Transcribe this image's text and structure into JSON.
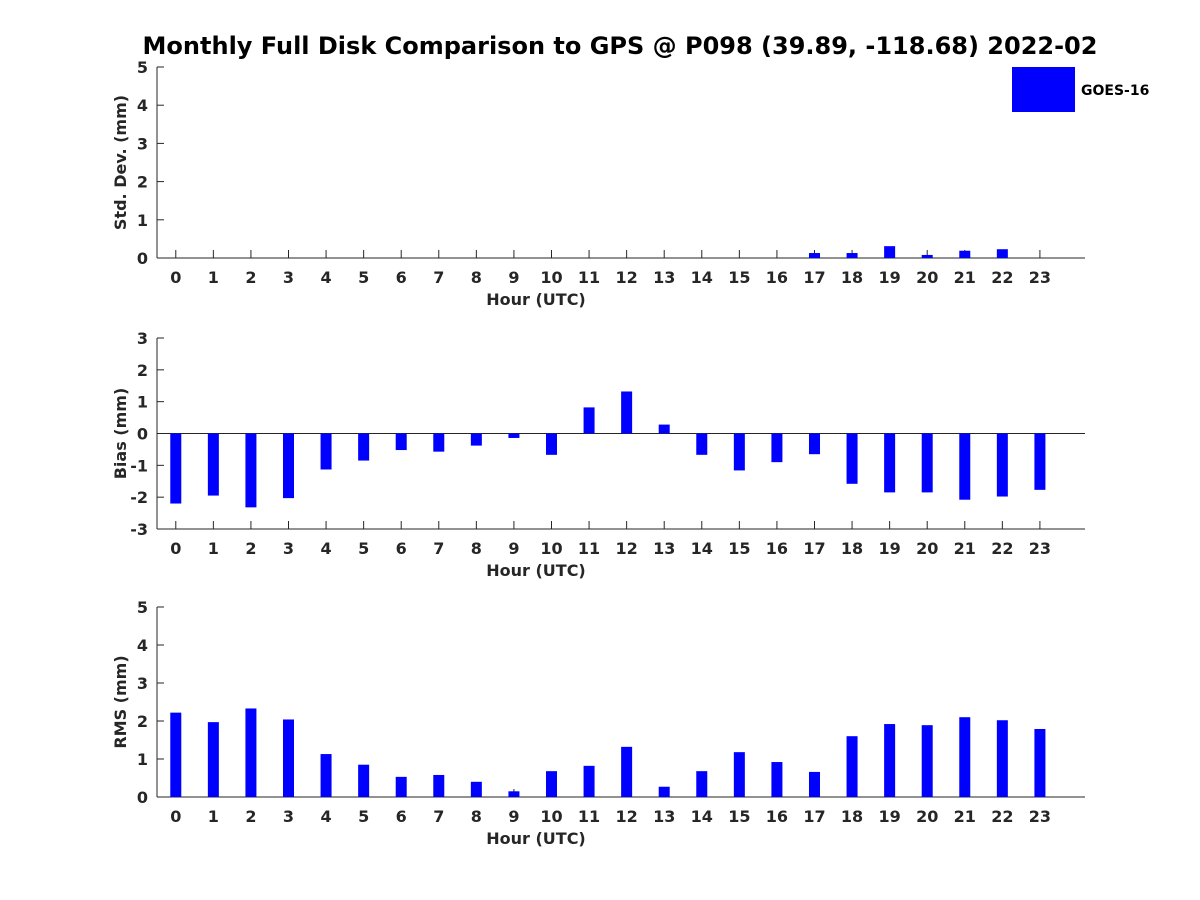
{
  "figure": {
    "title": "Monthly Full Disk Comparison to GPS @ P098 (39.89, -118.68) 2022-02",
    "bar_color": "#0000ff",
    "axis_color": "#262626"
  },
  "legend": {
    "label": "GOES-16",
    "color": "#0000ff",
    "placement": "top-right"
  },
  "chart_data": [
    {
      "type": "bar",
      "ylabel": "Std. Dev. (mm)",
      "xlabel": "Hour (UTC)",
      "ylim": [
        0,
        5
      ],
      "yticks": [
        0,
        1,
        2,
        3,
        4,
        5
      ],
      "categories": [
        "0",
        "1",
        "2",
        "3",
        "4",
        "5",
        "6",
        "7",
        "8",
        "9",
        "10",
        "11",
        "12",
        "13",
        "14",
        "15",
        "16",
        "17",
        "18",
        "19",
        "20",
        "21",
        "22",
        "23"
      ],
      "values": [
        0,
        0,
        0,
        0,
        0,
        0,
        0,
        0,
        0,
        0,
        0,
        0,
        0,
        0,
        0,
        0,
        0,
        0.13,
        0.13,
        0.31,
        0.08,
        0.19,
        0.23,
        0
      ]
    },
    {
      "type": "bar",
      "ylabel": "Bias (mm)",
      "xlabel": "Hour (UTC)",
      "ylim": [
        -3,
        3
      ],
      "yticks": [
        -3,
        -2,
        -1,
        0,
        1,
        2,
        3
      ],
      "zero_line": true,
      "categories": [
        "0",
        "1",
        "2",
        "3",
        "4",
        "5",
        "6",
        "7",
        "8",
        "9",
        "10",
        "11",
        "12",
        "13",
        "14",
        "15",
        "16",
        "17",
        "18",
        "19",
        "20",
        "21",
        "22",
        "23"
      ],
      "values": [
        -2.2,
        -1.95,
        -2.32,
        -2.03,
        -1.13,
        -0.85,
        -0.52,
        -0.57,
        -0.38,
        -0.14,
        -0.67,
        0.82,
        1.32,
        0.28,
        -0.67,
        -1.16,
        -0.9,
        -0.65,
        -1.58,
        -1.85,
        -1.85,
        -2.08,
        -1.98,
        -1.77
      ]
    },
    {
      "type": "bar",
      "ylabel": "RMS (mm)",
      "xlabel": "Hour (UTC)",
      "ylim": [
        0,
        5
      ],
      "yticks": [
        0,
        1,
        2,
        3,
        4,
        5
      ],
      "categories": [
        "0",
        "1",
        "2",
        "3",
        "4",
        "5",
        "6",
        "7",
        "8",
        "9",
        "10",
        "11",
        "12",
        "13",
        "14",
        "15",
        "16",
        "17",
        "18",
        "19",
        "20",
        "21",
        "22",
        "23"
      ],
      "values": [
        2.22,
        1.97,
        2.33,
        2.04,
        1.13,
        0.85,
        0.53,
        0.58,
        0.4,
        0.15,
        0.68,
        0.82,
        1.32,
        0.27,
        0.68,
        1.18,
        0.92,
        0.66,
        1.6,
        1.92,
        1.89,
        2.1,
        2.02,
        1.79
      ]
    }
  ]
}
